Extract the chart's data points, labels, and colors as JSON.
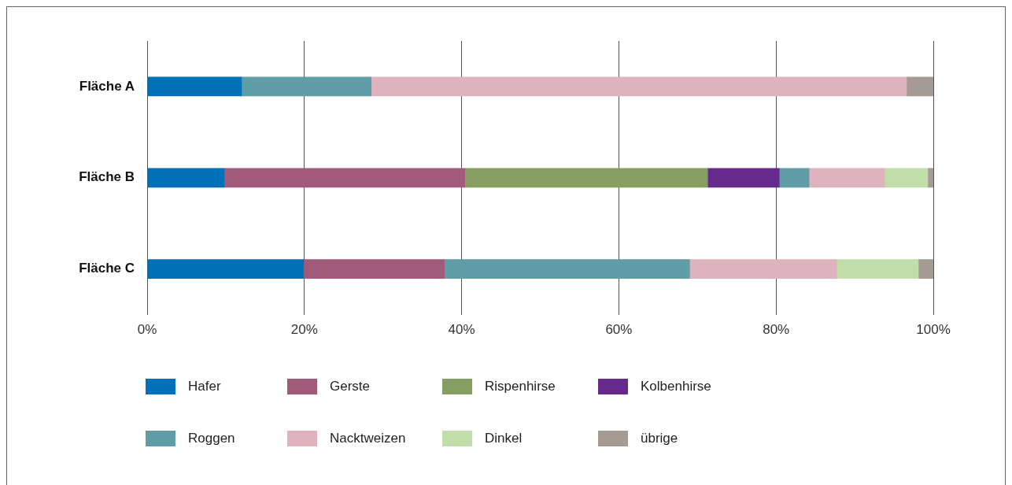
{
  "chart_data": {
    "type": "bar",
    "orientation": "horizontal",
    "stacked": true,
    "categories": [
      "Fläche A",
      "Fläche B",
      "Fläche C"
    ],
    "series": [
      {
        "name": "Hafer",
        "color": "#0070b8",
        "values": [
          12,
          9.8,
          19.9
        ]
      },
      {
        "name": "Gerste",
        "color": "#a25a7a",
        "values": [
          null,
          30.6,
          17.9
        ]
      },
      {
        "name": "Rispenhirse",
        "color": "#879e62",
        "values": [
          null,
          30.9,
          null
        ]
      },
      {
        "name": "Kolbenhirse",
        "color": "#662a8c",
        "values": [
          null,
          9.1,
          null
        ]
      },
      {
        "name": "Roggen",
        "color": "#5f9ea6",
        "values": [
          16.5,
          3.8,
          31.2
        ]
      },
      {
        "name": "Nacktweizen",
        "color": "#deb3bd",
        "values": [
          68.1,
          9.6,
          18.7
        ]
      },
      {
        "name": "Dinkel",
        "color": "#c0ddaa",
        "values": [
          null,
          5.5,
          10.4
        ]
      },
      {
        "name": "übrige",
        "color": "#a59b93",
        "values": [
          3.4,
          0.7,
          1.9
        ]
      }
    ],
    "xlim": [
      0,
      100
    ],
    "xticks": [
      {
        "value": 0,
        "label": "0%"
      },
      {
        "value": 20,
        "label": "20%"
      },
      {
        "value": 40,
        "label": "40%"
      },
      {
        "value": 60,
        "label": "60%"
      },
      {
        "value": 80,
        "label": "80%"
      },
      {
        "value": 100,
        "label": "100%"
      }
    ],
    "grid": "x",
    "legend": "bottom"
  }
}
